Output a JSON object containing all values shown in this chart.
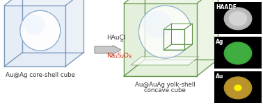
{
  "background_color": "#ffffff",
  "left_cube_fill": "#c8d8ee",
  "left_cube_edge": "#7090b8",
  "right_cube_fill": "#b8d8a0",
  "right_cube_edge": "#5a9040",
  "sphere_fill": "#ddeeff",
  "sphere_edge": "#8aaccf",
  "inner_cube_edge": "#5a9040",
  "floor_fill": "#ffffff",
  "arrow_fill": "#c8c8c8",
  "arrow_edge": "#888888",
  "text_black": "#333333",
  "text_red": "#cc2000",
  "label_left": "Au@Ag core-shell cube",
  "label_right_1": "Au@AuAg yolk-shell",
  "label_right_2": "concave cube",
  "label_fontsize": 6.2,
  "panel_order": [
    "HAADF",
    "Ag",
    "Au"
  ],
  "panel_bg": [
    "#000000",
    "#000000",
    "#000000"
  ],
  "panel_particle_color": [
    "#c8c8c8",
    "#44bb44",
    "#c8a030"
  ],
  "panel_core_color": [
    null,
    null,
    "#ffee00"
  ],
  "fig_width": 3.78,
  "fig_height": 1.56,
  "dpi": 100
}
